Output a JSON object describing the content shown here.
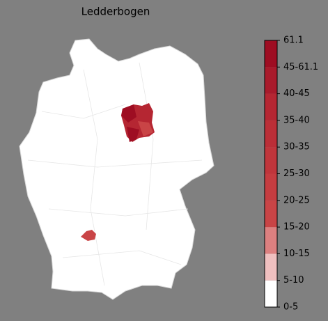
{
  "title": "Ledderbogen",
  "colorbar": {
    "labels": [
      "0-5",
      "5-10",
      "10-15",
      "15-20",
      "20-25",
      "25-30",
      "30-35",
      "35-40",
      "40-45",
      "45-61.1",
      "61.1"
    ],
    "colors": [
      "#ffffff",
      "#efbfbf",
      "#dd8080",
      "#c94446",
      "#c53c40",
      "#c0353b",
      "#bb2e37",
      "#b52632",
      "#a91a2b",
      "#9e0d22"
    ]
  }
}
